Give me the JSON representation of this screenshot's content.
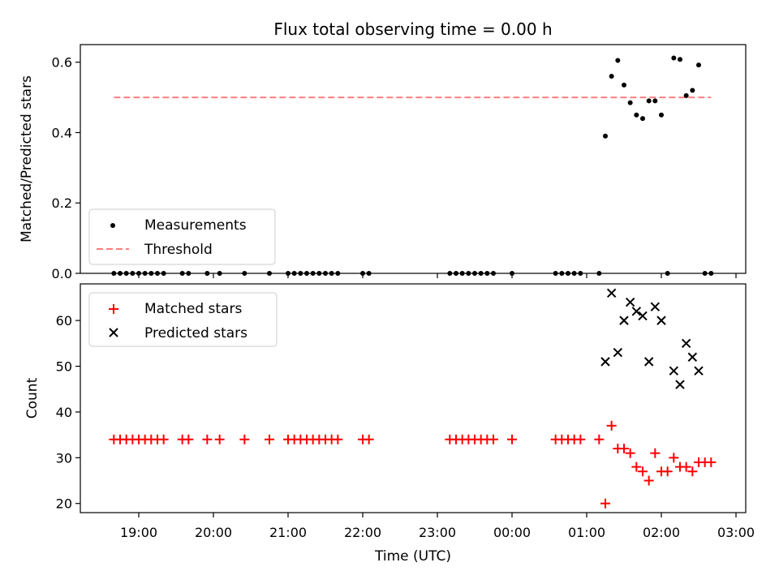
{
  "chart_data": {
    "title": "Flux total observing time = 0.00 h",
    "xlabel": "Time (UTC)",
    "x_ticks": [
      "19:00",
      "20:00",
      "21:00",
      "22:00",
      "23:00",
      "00:00",
      "01:00",
      "02:00",
      "03:00"
    ],
    "top": {
      "type": "scatter",
      "ylabel": "Matched/Predicted stars",
      "ylim": [
        0,
        0.65
      ],
      "yticks": [
        "0.0",
        "0.2",
        "0.4",
        "0.6"
      ],
      "yticks_values": [
        0.0,
        0.2,
        0.4,
        0.6
      ],
      "legend": [
        "Measurements",
        "Threshold"
      ],
      "threshold": 0.5,
      "threshold_x": [
        "18:40",
        "26:40"
      ],
      "measurements": [
        [
          "18:40",
          0
        ],
        [
          "18:45",
          0
        ],
        [
          "18:50",
          0
        ],
        [
          "18:55",
          0
        ],
        [
          "19:00",
          0
        ],
        [
          "19:05",
          0
        ],
        [
          "19:10",
          0
        ],
        [
          "19:15",
          0
        ],
        [
          "19:20",
          0
        ],
        [
          "19:35",
          0
        ],
        [
          "19:40",
          0
        ],
        [
          "19:55",
          0
        ],
        [
          "20:05",
          0
        ],
        [
          "20:25",
          0
        ],
        [
          "20:45",
          0
        ],
        [
          "21:00",
          0
        ],
        [
          "21:05",
          0
        ],
        [
          "21:10",
          0
        ],
        [
          "21:15",
          0
        ],
        [
          "21:20",
          0
        ],
        [
          "21:25",
          0
        ],
        [
          "21:30",
          0
        ],
        [
          "21:35",
          0
        ],
        [
          "21:40",
          0
        ],
        [
          "22:00",
          0
        ],
        [
          "22:05",
          0
        ],
        [
          "23:10",
          0
        ],
        [
          "23:15",
          0
        ],
        [
          "23:20",
          0
        ],
        [
          "23:25",
          0
        ],
        [
          "23:30",
          0
        ],
        [
          "23:35",
          0
        ],
        [
          "23:40",
          0
        ],
        [
          "23:45",
          0
        ],
        [
          "00:00",
          0
        ],
        [
          "00:35",
          0
        ],
        [
          "00:40",
          0
        ],
        [
          "00:45",
          0
        ],
        [
          "00:50",
          0
        ],
        [
          "00:55",
          0
        ],
        [
          "01:10",
          0
        ],
        [
          "01:15",
          0.39
        ],
        [
          "01:20",
          0.56
        ],
        [
          "01:25",
          0.605
        ],
        [
          "01:30",
          0.535
        ],
        [
          "01:35",
          0.485
        ],
        [
          "01:40",
          0.45
        ],
        [
          "01:45",
          0.44
        ],
        [
          "01:50",
          0.49
        ],
        [
          "01:55",
          0.49
        ],
        [
          "02:00",
          0.45
        ],
        [
          "02:05",
          0
        ],
        [
          "02:10",
          0.612
        ],
        [
          "02:15",
          0.608
        ],
        [
          "02:20",
          0.505
        ],
        [
          "02:25",
          0.52
        ],
        [
          "02:30",
          0.592
        ],
        [
          "02:35",
          0
        ],
        [
          "02:40",
          0
        ]
      ]
    },
    "bottom": {
      "type": "scatter",
      "ylabel": "Count",
      "ylim": [
        18,
        68
      ],
      "yticks": [
        "20",
        "30",
        "40",
        "50",
        "60"
      ],
      "yticks_values": [
        20,
        30,
        40,
        50,
        60
      ],
      "legend": [
        "Matched stars",
        "Predicted stars"
      ],
      "matched": [
        [
          "18:40",
          34
        ],
        [
          "18:45",
          34
        ],
        [
          "18:50",
          34
        ],
        [
          "18:55",
          34
        ],
        [
          "19:00",
          34
        ],
        [
          "19:05",
          34
        ],
        [
          "19:10",
          34
        ],
        [
          "19:15",
          34
        ],
        [
          "19:20",
          34
        ],
        [
          "19:35",
          34
        ],
        [
          "19:40",
          34
        ],
        [
          "19:55",
          34
        ],
        [
          "20:05",
          34
        ],
        [
          "20:25",
          34
        ],
        [
          "20:45",
          34
        ],
        [
          "21:00",
          34
        ],
        [
          "21:05",
          34
        ],
        [
          "21:10",
          34
        ],
        [
          "21:15",
          34
        ],
        [
          "21:20",
          34
        ],
        [
          "21:25",
          34
        ],
        [
          "21:30",
          34
        ],
        [
          "21:35",
          34
        ],
        [
          "21:40",
          34
        ],
        [
          "22:00",
          34
        ],
        [
          "22:05",
          34
        ],
        [
          "23:10",
          34
        ],
        [
          "23:15",
          34
        ],
        [
          "23:20",
          34
        ],
        [
          "23:25",
          34
        ],
        [
          "23:30",
          34
        ],
        [
          "23:35",
          34
        ],
        [
          "23:40",
          34
        ],
        [
          "23:45",
          34
        ],
        [
          "00:00",
          34
        ],
        [
          "00:35",
          34
        ],
        [
          "00:40",
          34
        ],
        [
          "00:45",
          34
        ],
        [
          "00:50",
          34
        ],
        [
          "00:55",
          34
        ],
        [
          "01:10",
          34
        ],
        [
          "01:15",
          20
        ],
        [
          "01:20",
          37
        ],
        [
          "01:25",
          32
        ],
        [
          "01:30",
          32
        ],
        [
          "01:35",
          31
        ],
        [
          "01:40",
          28
        ],
        [
          "01:45",
          27
        ],
        [
          "01:50",
          25
        ],
        [
          "01:55",
          31
        ],
        [
          "02:00",
          27
        ],
        [
          "02:05",
          27
        ],
        [
          "02:10",
          30
        ],
        [
          "02:15",
          28
        ],
        [
          "02:20",
          28
        ],
        [
          "02:25",
          27
        ],
        [
          "02:30",
          29
        ],
        [
          "02:35",
          29
        ],
        [
          "02:40",
          29
        ]
      ],
      "predicted": [
        [
          "01:15",
          51
        ],
        [
          "01:20",
          66
        ],
        [
          "01:25",
          53
        ],
        [
          "01:30",
          60
        ],
        [
          "01:35",
          64
        ],
        [
          "01:40",
          62
        ],
        [
          "01:45",
          61
        ],
        [
          "01:50",
          51
        ],
        [
          "01:55",
          63
        ],
        [
          "02:00",
          60
        ],
        [
          "02:10",
          49
        ],
        [
          "02:15",
          46
        ],
        [
          "02:20",
          55
        ],
        [
          "02:25",
          52
        ],
        [
          "02:30",
          49
        ]
      ]
    },
    "colors": {
      "measurements": "#000000",
      "threshold": "#ff7f7f",
      "matched": "#ff0000",
      "predicted": "#000000"
    }
  }
}
